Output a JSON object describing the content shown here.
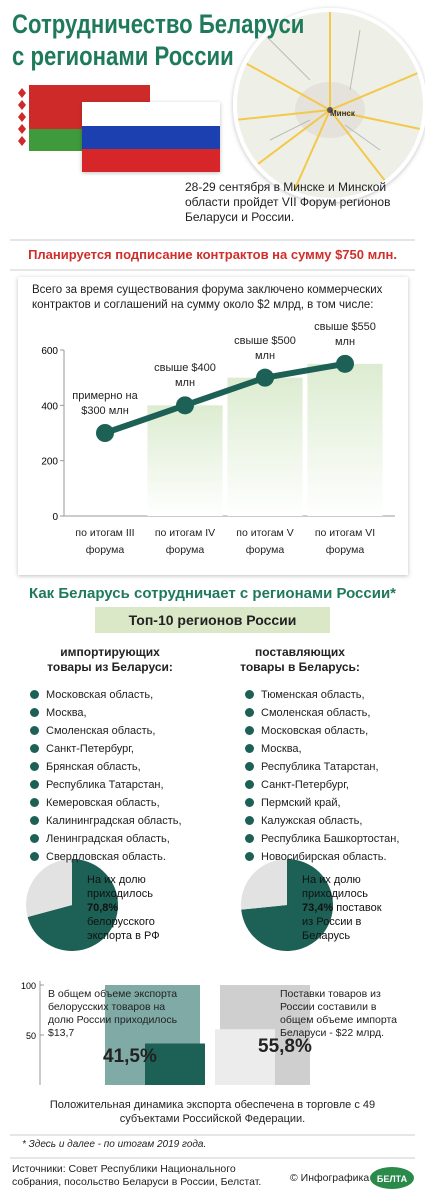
{
  "header": {
    "title_lines": [
      "Сотрудничество Беларуси",
      "с регионами России"
    ],
    "intro": "28-29 сентября в Минске и Минской области пройдет VII Форум регионов Беларуси и России.",
    "map_labels": [
      "Минск"
    ]
  },
  "highlight": "Планируется подписание контрактов на сумму $750 млн.",
  "section": {
    "title": "Как Беларусь сотрудничает с регионами России*",
    "subtitle": "Топ-10 регионов России",
    "columns": [
      {
        "title": "импортирующих товары из Беларуси:",
        "items": [
          "Московская область,",
          "Москва,",
          "Смоленская область,",
          "Санкт-Петербург,",
          "Брянская область,",
          "Республика Татарстан,",
          "Кемеровская область,",
          "Калининградская область,",
          "Ленинградская область,",
          "Свердловская область."
        ]
      },
      {
        "title": "поставляющих товары в Беларусь:",
        "items": [
          "Тюменская область,",
          "Смоленская область,",
          "Московская область,",
          "Москва,",
          "Республика Татарстан,",
          "Санкт-Петербург,",
          "Пермский край,",
          "Калужская область,",
          "Республика Башкортостан,",
          "Новосибирская область."
        ]
      }
    ]
  },
  "chart_data": [
    {
      "type": "line",
      "subtitle": "Всего за время существования форума заключено коммерческих контрактов и соглашений на сумму около $2 млрд, в том числе:",
      "categories": [
        "по итогам III форума",
        "по итогам IV форума",
        "по итогам V форума",
        "по итогам VI форума"
      ],
      "values": [
        300,
        400,
        500,
        550
      ],
      "value_labels": [
        "примерно на $300 млн",
        "свыше $400 млн",
        "свыше $500 млн",
        "свыше $550 млн"
      ],
      "ylim": [
        0,
        600
      ],
      "yticks": [
        0,
        200,
        400,
        600
      ],
      "color": "#1d6055",
      "column_color": "#dcecd0"
    },
    {
      "type": "pie",
      "values": [
        70.8,
        29.2
      ],
      "value_labels": [
        "70,8%",
        null
      ],
      "text_before": "На их долю приходилось",
      "text_after": "белорусского экспорта в РФ",
      "colors": [
        "#1d6055",
        "#e2e2e2"
      ]
    },
    {
      "type": "pie",
      "values": [
        73.4,
        26.6
      ],
      "value_labels": [
        "73,4%",
        null
      ],
      "text_before": "На их долю приходилось",
      "text_after": "поставок из России в Беларусь",
      "colors": [
        "#1d6055",
        "#e2e2e2"
      ]
    },
    {
      "type": "bar",
      "ylim": [
        0,
        100
      ],
      "yticks": [
        50,
        100
      ],
      "series": [
        {
          "values": [
            100,
            100
          ],
          "colors": [
            "#80aaa6",
            "#cfcfcf"
          ]
        },
        {
          "values": [
            41.5,
            55.8
          ],
          "value_labels": [
            "41,5%",
            "55,8%"
          ],
          "colors": [
            "#1d6055",
            "#ececec"
          ]
        }
      ],
      "annotations": [
        "В общем объеме экспорта белорусских товаров на долю России приходилось $13,7",
        "Поставки товаров из России составили в общем объеме импорта Беларуси - $22 млрд."
      ],
      "note": "Положительная динамика экспорта обеспечена в торговле с 49 субъектами Российской Федерации."
    }
  ],
  "footnote": "* Здесь и далее - по итогам 2019 года.",
  "footer": {
    "sources": "Источники: Совет Республики Национального собрания, посольство Беларуси в России, Белстат.",
    "credit": "© Инфографика",
    "logo": "БЕЛТА"
  }
}
